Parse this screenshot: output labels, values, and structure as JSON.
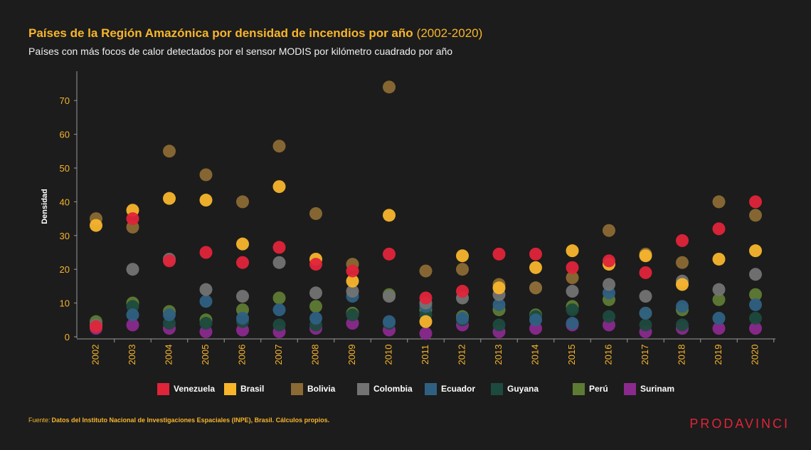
{
  "header": {
    "title": "Países de la Región Amazónica por densidad de incendios por año",
    "title_range": "(2002-2020)",
    "subtitle": "Países con más focos de calor detectados por el sensor MODIS por kilómetro cuadrado por año"
  },
  "footer": {
    "source_label": "Fuente:",
    "source_text": "Datos del Instituto Nacional de Investigaciones Espaciales (INPE), Brasil. Cálculos propios.",
    "logo": "PRODAVINCI"
  },
  "colors": {
    "background": "#1c1c1c",
    "accent": "#f7b52c",
    "axis": "#9a9a9a"
  },
  "chart_data": {
    "type": "scatter",
    "title": "Países de la Región Amazónica por densidad de incendios por año (2002-2020)",
    "ylabel": "Densidad",
    "xlabel": "",
    "ylim": [
      0,
      80
    ],
    "yticks": [
      0,
      10,
      20,
      30,
      40,
      50,
      60,
      70
    ],
    "grid": false,
    "legend_position": "bottom",
    "categories": [
      "2002",
      "2003",
      "2004",
      "2005",
      "2006",
      "2007",
      "2008",
      "2009",
      "2010",
      "2011",
      "2012",
      "2013",
      "2014",
      "2015",
      "2016",
      "2017",
      "2018",
      "2019",
      "2020"
    ],
    "series": [
      {
        "name": "Surinam",
        "color": "#8a2a8e",
        "values": [
          2.5,
          3.5,
          2.5,
          1.5,
          2,
          1.5,
          2.5,
          4,
          2,
          1,
          3.5,
          1.5,
          2.5,
          3.5,
          3.5,
          1.5,
          2.5,
          2.5,
          2.5
        ]
      },
      {
        "name": "Perú",
        "color": "#5e7b34",
        "values": [
          4.5,
          10,
          7.5,
          5,
          8,
          11.5,
          9,
          7,
          12.5,
          8,
          6,
          8,
          6.5,
          9,
          11,
          7,
          8,
          11,
          12.5
        ]
      },
      {
        "name": "Guyana",
        "color": "#1d4a3e",
        "values": [
          3.5,
          9,
          4,
          4,
          4.5,
          3.5,
          3.5,
          6.5,
          4,
          6.5,
          5,
          3.5,
          6,
          8,
          6,
          3.5,
          3.5,
          5.5,
          5.5
        ]
      },
      {
        "name": "Ecuador",
        "color": "#2f6082",
        "values": [
          3,
          6.5,
          6.5,
          10.5,
          5.5,
          8,
          5.5,
          12,
          4.5,
          9,
          5.5,
          9.5,
          5,
          4,
          13,
          7,
          9,
          5.5,
          9.5
        ]
      },
      {
        "name": "Colombia",
        "color": "#737373",
        "values": [
          3.5,
          20,
          23,
          14,
          12,
          22,
          13,
          13.5,
          12,
          10,
          11.5,
          12.5,
          14.5,
          13.5,
          15.5,
          12,
          16.5,
          14,
          18.5
        ]
      },
      {
        "name": "Bolivia",
        "color": "#8b6a34",
        "values": [
          35,
          32.5,
          55,
          48,
          40,
          56.5,
          36.5,
          21.5,
          74,
          19.5,
          20,
          15.5,
          14.5,
          17.5,
          31.5,
          24.5,
          22,
          40,
          36
        ]
      },
      {
        "name": "Brasil",
        "color": "#f7b52c",
        "values": [
          33,
          37.5,
          41,
          40.5,
          27.5,
          44.5,
          23,
          16.5,
          36,
          4.5,
          24,
          14.5,
          20.5,
          25.5,
          21.5,
          24,
          15.5,
          23,
          25.5
        ]
      },
      {
        "name": "Venezuela",
        "color": "#e0243a",
        "values": [
          3,
          35,
          22.5,
          25,
          22,
          26.5,
          21.5,
          19.5,
          24.5,
          11.5,
          13.5,
          24.5,
          24.5,
          20.5,
          22.5,
          19,
          28.5,
          32,
          40
        ]
      }
    ]
  },
  "legend": [
    {
      "name": "Venezuela",
      "color": "#e0243a"
    },
    {
      "name": "Brasil",
      "color": "#f7b52c"
    },
    {
      "name": "Bolivia",
      "color": "#8b6a34"
    },
    {
      "name": "Colombia",
      "color": "#737373"
    },
    {
      "name": "Ecuador",
      "color": "#2f6082"
    },
    {
      "name": "Guyana",
      "color": "#1d4a3e"
    },
    {
      "name": "Perú",
      "color": "#5e7b34"
    },
    {
      "name": "Surinam",
      "color": "#8a2a8e"
    }
  ]
}
